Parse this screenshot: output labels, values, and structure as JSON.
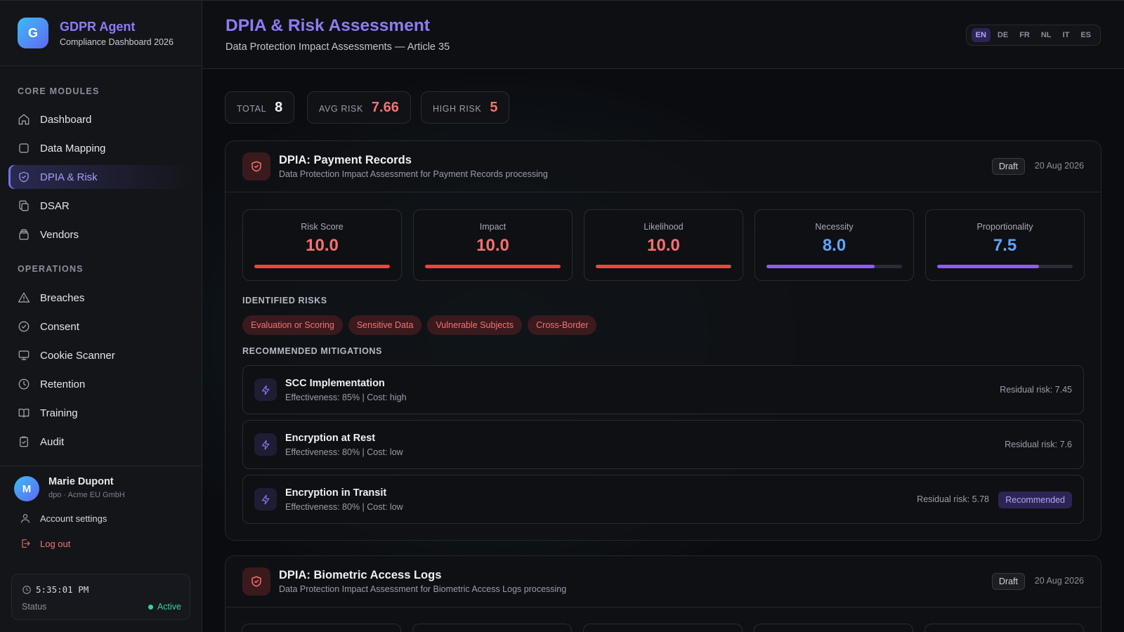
{
  "brand": {
    "initial": "G",
    "title": "GDPR Agent",
    "subtitle": "Compliance Dashboard 2026"
  },
  "nav": {
    "core_label": "CORE MODULES",
    "ops_label": "OPERATIONS",
    "core": [
      {
        "label": "Dashboard",
        "icon": "home-icon"
      },
      {
        "label": "Data Mapping",
        "icon": "square-icon"
      },
      {
        "label": "DPIA & Risk",
        "icon": "shield-icon",
        "active": true
      },
      {
        "label": "DSAR",
        "icon": "copy-icon"
      },
      {
        "label": "Vendors",
        "icon": "box-icon"
      }
    ],
    "ops": [
      {
        "label": "Breaches",
        "icon": "alert-triangle-icon"
      },
      {
        "label": "Consent",
        "icon": "check-circle-icon"
      },
      {
        "label": "Cookie Scanner",
        "icon": "monitor-icon"
      },
      {
        "label": "Retention",
        "icon": "clock-icon"
      },
      {
        "label": "Training",
        "icon": "book-icon"
      },
      {
        "label": "Audit",
        "icon": "clipboard-icon"
      }
    ]
  },
  "user": {
    "initial": "M",
    "name": "Marie Dupont",
    "role": "dpo · Acme EU GmbH",
    "settings": "Account settings",
    "logout": "Log out"
  },
  "system": {
    "time": "5:35:01 PM",
    "status_label": "Status",
    "status_value": "Active"
  },
  "header": {
    "title": "DPIA & Risk Assessment",
    "subtitle": "Data Protection Impact Assessments — Article 35",
    "languages": [
      "EN",
      "DE",
      "FR",
      "NL",
      "IT",
      "ES"
    ],
    "active_language": "EN"
  },
  "stats": {
    "total": {
      "label": "TOTAL",
      "value": "8"
    },
    "avg_risk": {
      "label": "AVG RISK",
      "value": "7.66"
    },
    "high_risk": {
      "label": "HIGH RISK",
      "value": "5"
    }
  },
  "colors": {
    "accent": "#8b7cf6",
    "danger": "#f87171",
    "risk_bar": "#ef4444",
    "good_bar": "#8b5cf6",
    "info_value": "#60a5fa"
  },
  "assessments": [
    {
      "title": "DPIA: Payment Records",
      "description": "Data Protection Impact Assessment for Payment Records processing",
      "status": "Draft",
      "date": "20 Aug 2026",
      "metrics": [
        {
          "label": "Risk Score",
          "value": "10.0",
          "level": 1.0,
          "tone": "risk"
        },
        {
          "label": "Impact",
          "value": "10.0",
          "level": 1.0,
          "tone": "risk"
        },
        {
          "label": "Likelihood",
          "value": "10.0",
          "level": 1.0,
          "tone": "risk"
        },
        {
          "label": "Necessity",
          "value": "8.0",
          "level": 0.8,
          "tone": "good"
        },
        {
          "label": "Proportionality",
          "value": "7.5",
          "level": 0.75,
          "tone": "good"
        }
      ],
      "risks_label": "IDENTIFIED RISKS",
      "risks": [
        "Evaluation or Scoring",
        "Sensitive Data",
        "Vulnerable Subjects",
        "Cross-Border"
      ],
      "mitigations_label": "RECOMMENDED MITIGATIONS",
      "mitigations": [
        {
          "title": "SCC Implementation",
          "detail": "Effectiveness: 85% | Cost: high",
          "residual": "Residual risk: 7.45"
        },
        {
          "title": "Encryption at Rest",
          "detail": "Effectiveness: 80% | Cost: low",
          "residual": "Residual risk: 7.6"
        },
        {
          "title": "Encryption in Transit",
          "detail": "Effectiveness: 80% | Cost: low",
          "residual": "Residual risk: 5.78",
          "badge": "Recommended"
        }
      ]
    },
    {
      "title": "DPIA: Biometric Access Logs",
      "description": "Data Protection Impact Assessment for Biometric Access Logs processing",
      "status": "Draft",
      "date": "20 Aug 2026"
    }
  ]
}
